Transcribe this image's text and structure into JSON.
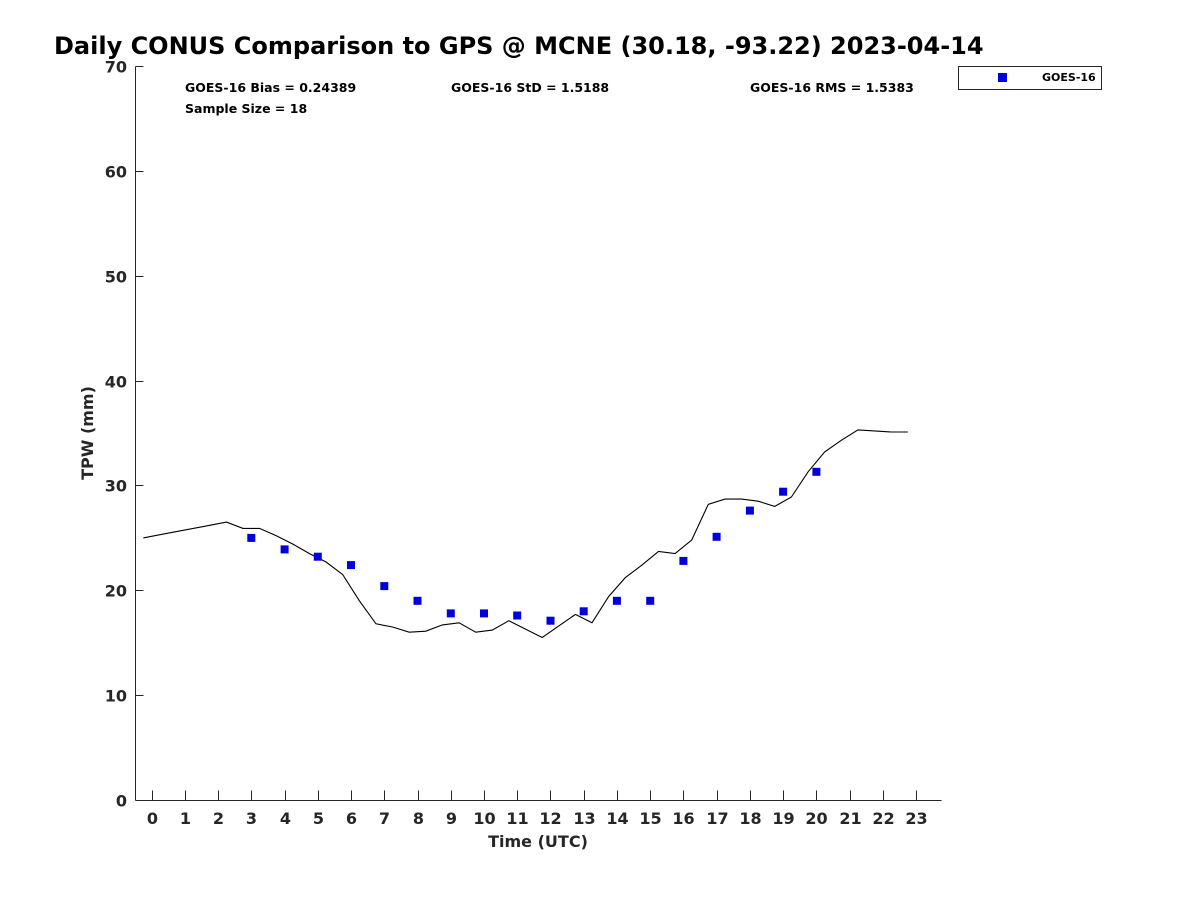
{
  "chart_data": {
    "type": "scatter",
    "title": "Daily CONUS Comparison to GPS @ MCNE (30.18, -93.22) 2023-04-14",
    "xlabel": "Time (UTC)",
    "ylabel": "TPW (mm)",
    "xlim": [
      -0.5,
      23.75
    ],
    "ylim": [
      0,
      70
    ],
    "xticks": [
      0,
      1,
      2,
      3,
      4,
      5,
      6,
      7,
      8,
      9,
      10,
      11,
      12,
      13,
      14,
      15,
      16,
      17,
      18,
      19,
      20,
      21,
      22,
      23
    ],
    "yticks": [
      0,
      10,
      20,
      30,
      40,
      50,
      60,
      70
    ],
    "grid": false,
    "legend_position": "top-right",
    "stats": {
      "bias": "GOES-16 Bias = 0.24389",
      "std": "GOES-16 StD = 1.5188",
      "rms": "GOES-16 RMS = 1.5383",
      "sample": "Sample Size = 18"
    },
    "series": [
      {
        "name": "GOES-16",
        "kind": "scatter",
        "marker": "square",
        "color": "#0000dd",
        "x": [
          3,
          4,
          5,
          6,
          7,
          8,
          9,
          10,
          11,
          12,
          13,
          14,
          15,
          16,
          17,
          18,
          19,
          20
        ],
        "y": [
          25.0,
          23.9,
          23.2,
          22.4,
          20.4,
          19.0,
          17.8,
          17.8,
          17.6,
          17.1,
          18.0,
          19.0,
          19.0,
          22.8,
          25.1,
          27.6,
          29.4,
          31.3
        ]
      },
      {
        "kind": "line",
        "color": "#000000",
        "x": [
          -0.25,
          0.25,
          0.75,
          1.25,
          1.75,
          2.25,
          2.75,
          3.25,
          3.75,
          4.25,
          4.75,
          5.25,
          5.75,
          6.25,
          6.75,
          7.25,
          7.75,
          8.25,
          8.75,
          9.25,
          9.75,
          10.25,
          10.75,
          11.25,
          11.75,
          12.25,
          12.75,
          13.25,
          13.75,
          14.25,
          14.75,
          15.25,
          15.75,
          16.25,
          16.75,
          17.25,
          17.75,
          18.25,
          18.75,
          19.25,
          19.75,
          20.25,
          20.75,
          21.25,
          21.75,
          22.25,
          22.75
        ],
        "y": [
          25.0,
          25.3,
          25.6,
          25.9,
          26.2,
          26.5,
          25.9,
          25.9,
          25.2,
          24.4,
          23.5,
          22.7,
          21.5,
          19.0,
          16.8,
          16.5,
          16.0,
          16.1,
          16.7,
          16.9,
          16.0,
          16.2,
          17.1,
          16.3,
          15.5,
          16.6,
          17.7,
          16.9,
          19.4,
          21.2,
          22.4,
          23.7,
          23.5,
          24.8,
          28.2,
          28.7,
          28.7,
          28.5,
          28.0,
          28.9,
          31.3,
          33.2,
          34.3,
          35.3,
          35.2,
          35.1,
          35.1
        ]
      }
    ]
  }
}
